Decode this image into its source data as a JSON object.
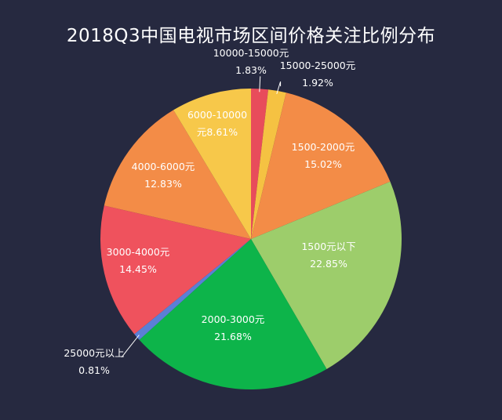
{
  "chart_data": {
    "type": "pie",
    "title": "2018Q3中国电视市场区间价格关注比例分布",
    "unit": "%",
    "start_angle_deg": 0,
    "direction": "clockwise",
    "slices": [
      {
        "label": "10000-15000元",
        "value": 1.83,
        "value_text": "1.83%",
        "color": "#e84c5b"
      },
      {
        "label": "15000-25000元",
        "value": 1.92,
        "value_text": "1.92%",
        "color": "#f5c242"
      },
      {
        "label": "1500-2000元",
        "value": 15.02,
        "value_text": "15.02%",
        "color": "#f38c47"
      },
      {
        "label": "1500元以下",
        "value": 22.85,
        "value_text": "22.85%",
        "color": "#9dcd6b"
      },
      {
        "label": "2000-3000元",
        "value": 21.68,
        "value_text": "21.68%",
        "color": "#0db44a"
      },
      {
        "label": "25000元以上",
        "value": 0.81,
        "value_text": "0.81%",
        "color": "#5b7fd6"
      },
      {
        "label": "3000-4000元",
        "value": 14.45,
        "value_text": "14.45%",
        "color": "#ef525d"
      },
      {
        "label": "4000-6000元",
        "value": 12.83,
        "value_text": "12.83%",
        "color": "#f38c47"
      },
      {
        "label": "6000-10000元",
        "value": 8.61,
        "value_text": "8.61%",
        "color": "#f7c84a"
      }
    ]
  }
}
